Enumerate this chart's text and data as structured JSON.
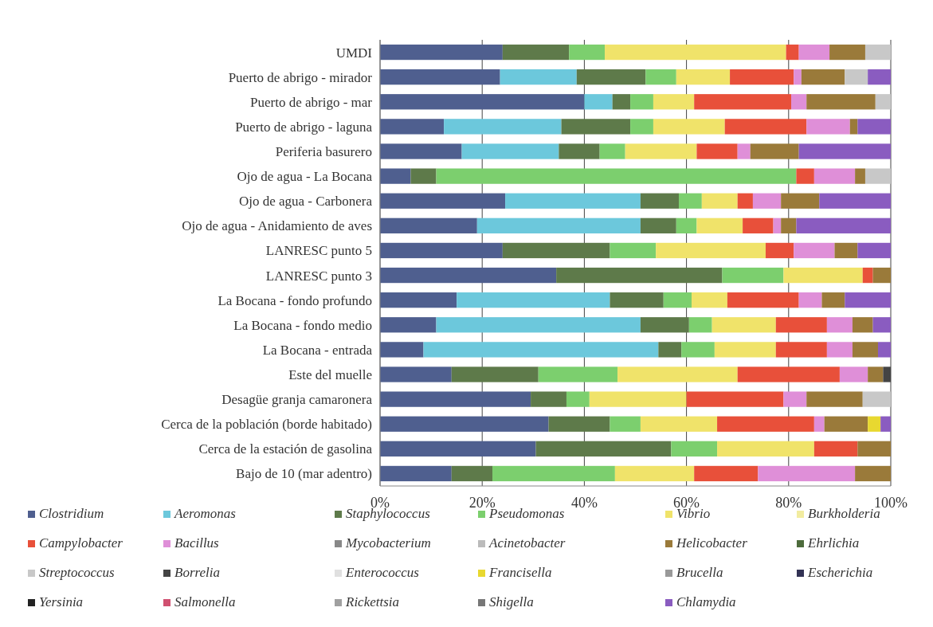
{
  "chart_data": {
    "type": "bar",
    "orientation": "horizontal",
    "stacked": true,
    "grid": "x",
    "legend": "bottom",
    "categories": [
      "UMDI",
      "Puerto de abrigo - mirador",
      "Puerto de abrigo - mar",
      "Puerto de abrigo - laguna",
      "Periferia basurero",
      "Ojo de agua - La Bocana",
      "Ojo de agua - Carbonera",
      "Ojo de agua - Anidamiento de aves",
      "LANRESC punto 5",
      "LANRESC punto 3",
      "La Bocana - fondo profundo",
      "La Bocana - fondo medio",
      "La Bocana - entrada",
      "Este del muelle",
      "Desagüe granja camaronera",
      "Cerca de la población (borde habitado)",
      "Cerca de la estación de gasolina",
      "Bajo de 10 (mar adentro)"
    ],
    "xlim": [
      0,
      100
    ],
    "xticks": [
      {
        "value": 0,
        "label": "0%"
      },
      {
        "value": 20,
        "label": "20%"
      },
      {
        "value": 40,
        "label": "40%"
      },
      {
        "value": 60,
        "label": "60%"
      },
      {
        "value": 80,
        "label": "80%"
      },
      {
        "value": 100,
        "label": "100%"
      }
    ],
    "series": [
      {
        "name": "Clostridium",
        "color": "#4f5f8f",
        "values": [
          24,
          23.5,
          40,
          12.5,
          16,
          6,
          24.5,
          19,
          24,
          34.5,
          15,
          11,
          8.5,
          14,
          29.5,
          33,
          30.5,
          14
        ]
      },
      {
        "name": "Aeromonas",
        "color": "#6cc8dc",
        "values": [
          0,
          15,
          5.5,
          23,
          19,
          0,
          26.5,
          32,
          0,
          0,
          30,
          40,
          46,
          0,
          0,
          0,
          0,
          0
        ]
      },
      {
        "name": "Staphylococcus",
        "color": "#5e7a4a",
        "values": [
          13,
          13.5,
          3.5,
          13.5,
          8,
          5,
          7.5,
          7,
          21,
          32.5,
          10.5,
          9.5,
          4.5,
          17,
          7,
          12,
          26.5,
          8
        ]
      },
      {
        "name": "Pseudomonas",
        "color": "#7ccf6e",
        "values": [
          7,
          6,
          4.5,
          4.5,
          5,
          70.5,
          4.5,
          4,
          9,
          12,
          5.5,
          4.5,
          6.5,
          15.5,
          4.5,
          6,
          9,
          24
        ]
      },
      {
        "name": "Vibrio",
        "color": "#f0e36a",
        "values": [
          35.5,
          10.5,
          8,
          14,
          14,
          0,
          7,
          9,
          21.5,
          15.5,
          7,
          12.5,
          12,
          23.5,
          19,
          15,
          19,
          15.5
        ]
      },
      {
        "name": "Burkholderia",
        "color": "#f2eca0",
        "values": [
          0,
          0,
          0,
          0,
          0,
          0,
          0,
          0,
          0,
          0,
          0,
          0,
          0,
          0,
          0,
          0,
          0,
          0
        ]
      },
      {
        "name": "Campylobacter",
        "color": "#e8503a",
        "values": [
          2.5,
          12.5,
          19,
          16,
          8,
          3.5,
          3,
          6,
          5.5,
          2,
          14,
          10,
          10,
          20,
          19,
          19,
          8.5,
          12.5
        ]
      },
      {
        "name": "Bacillus",
        "color": "#df8fd8",
        "values": [
          6,
          1.5,
          3,
          8.5,
          2.5,
          8,
          5.5,
          1.5,
          8,
          0,
          4.5,
          5,
          5,
          5.5,
          4.5,
          2,
          0,
          19
        ]
      },
      {
        "name": "Mycobacterium",
        "color": "#888888",
        "values": [
          0,
          0,
          0,
          0,
          0,
          0,
          0,
          0,
          0,
          0,
          0,
          0,
          0,
          0,
          0,
          0,
          0,
          0
        ]
      },
      {
        "name": "Acinetobacter",
        "color": "#bbbbbb",
        "values": [
          0,
          0,
          0,
          0,
          0,
          0,
          0,
          0,
          0,
          0,
          0,
          0,
          0,
          0,
          0,
          0,
          0,
          0
        ]
      },
      {
        "name": "Helicobacter",
        "color": "#9a7a3a",
        "values": [
          7,
          8.5,
          13.5,
          1.5,
          9.5,
          2,
          7.5,
          3,
          4.5,
          3.5,
          4.5,
          4,
          5,
          3,
          11,
          8.5,
          6.5,
          7
        ]
      },
      {
        "name": "Ehrlichia",
        "color": "#4d6b3c",
        "values": [
          0,
          0,
          0,
          0,
          0,
          0,
          0,
          0,
          0,
          0,
          0,
          0,
          0,
          0,
          0,
          0,
          0,
          0
        ]
      },
      {
        "name": "Streptococcus",
        "color": "#c8c8c8",
        "values": [
          5,
          4.5,
          3,
          0,
          0,
          5,
          0,
          0,
          0,
          0,
          0,
          0,
          0,
          0,
          5.5,
          0,
          0,
          0
        ]
      },
      {
        "name": "Borrelia",
        "color": "#444444",
        "values": [
          0,
          0,
          0,
          0,
          0,
          0,
          0,
          0,
          0,
          0,
          0,
          0,
          0,
          1.5,
          0,
          0,
          0,
          0
        ]
      },
      {
        "name": "Enterococcus",
        "color": "#e0e0e0",
        "values": [
          0,
          0,
          0,
          0,
          0,
          0,
          0,
          0,
          0,
          0,
          0,
          0,
          0,
          0,
          0,
          0,
          0,
          0
        ]
      },
      {
        "name": "Francisella",
        "color": "#e8d830",
        "values": [
          0,
          0,
          0,
          0,
          0,
          0,
          0,
          0,
          0,
          0,
          0,
          0,
          0,
          0,
          0,
          2.5,
          0,
          0
        ]
      },
      {
        "name": "Brucella",
        "color": "#999999",
        "values": [
          0,
          0,
          0,
          0,
          0,
          0,
          0,
          0,
          0,
          0,
          0,
          0,
          0,
          0,
          0,
          0,
          0,
          0
        ]
      },
      {
        "name": "Escherichia",
        "color": "#333355",
        "values": [
          0,
          0,
          0,
          0,
          0,
          0,
          0,
          0,
          0,
          0,
          0,
          0,
          0,
          0,
          0,
          0,
          0,
          0
        ]
      },
      {
        "name": "Yersinia",
        "color": "#222222",
        "values": [
          0,
          0,
          0,
          0,
          0,
          0,
          0,
          0,
          0,
          0,
          0,
          0,
          0,
          0,
          0,
          0,
          0,
          0
        ]
      },
      {
        "name": "Salmonella",
        "color": "#d05070",
        "values": [
          0,
          0,
          0,
          0,
          0,
          0,
          0,
          0,
          0,
          0,
          0,
          0,
          0,
          0,
          0,
          0,
          0,
          0
        ]
      },
      {
        "name": "Rickettsia",
        "color": "#a0a0a0",
        "values": [
          0,
          0,
          0,
          0,
          0,
          0,
          0,
          0,
          0,
          0,
          0,
          0,
          0,
          0,
          0,
          0,
          0,
          0
        ]
      },
      {
        "name": "Shigella",
        "color": "#777777",
        "values": [
          0,
          0,
          0,
          0,
          0,
          0,
          0,
          0,
          0,
          0,
          0,
          0,
          0,
          0,
          0,
          0,
          0,
          0
        ]
      },
      {
        "name": "Chlamydia",
        "color": "#8a5cc0",
        "values": [
          0,
          4.5,
          0,
          6.5,
          18,
          0,
          14,
          18.5,
          6.5,
          0,
          9,
          3.5,
          2.5,
          0,
          0,
          2,
          0,
          0
        ]
      }
    ]
  }
}
